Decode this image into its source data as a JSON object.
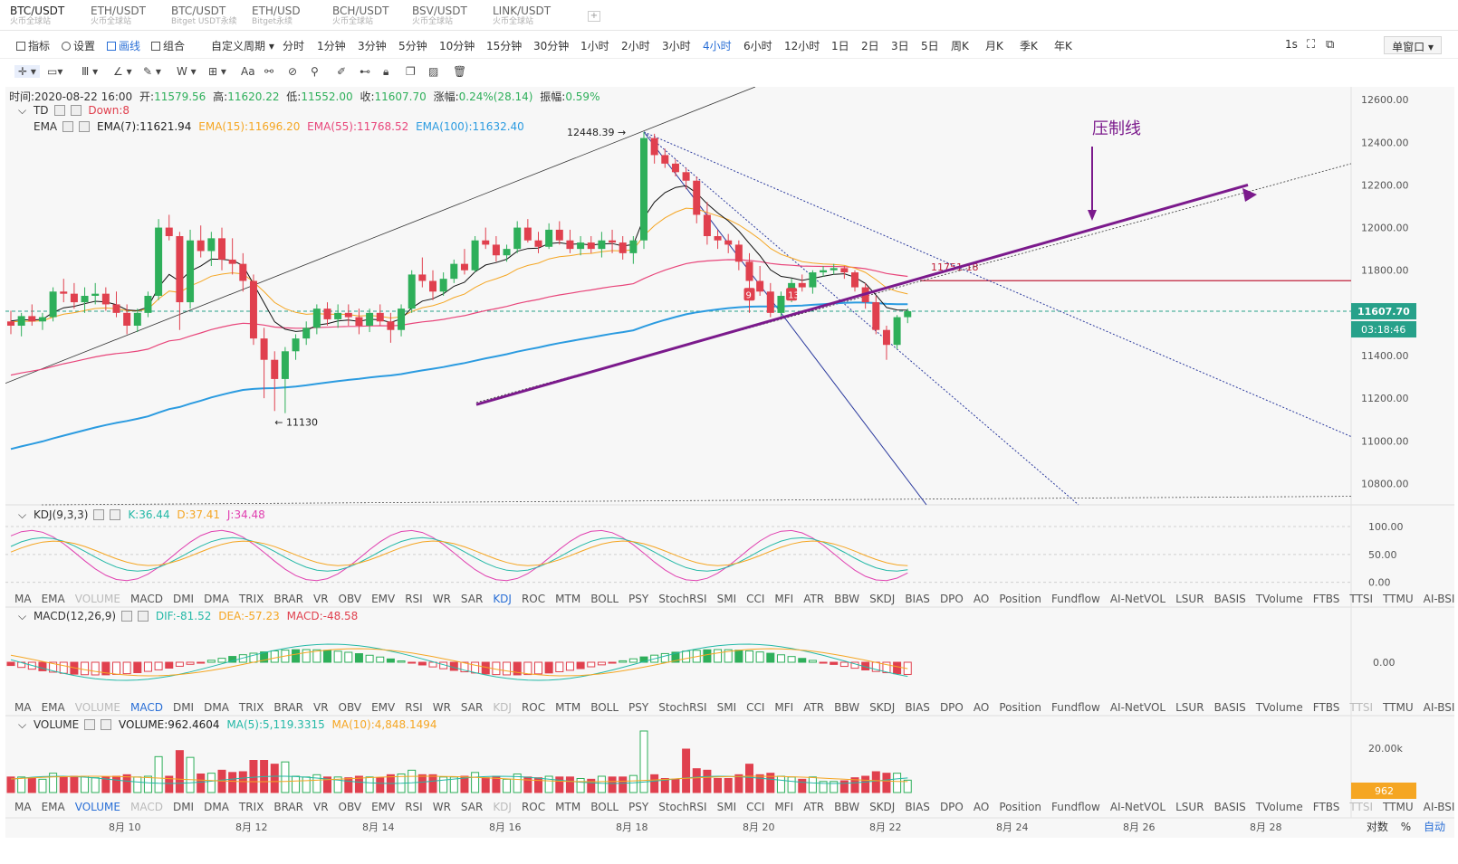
{
  "tabs": [
    {
      "symbol": "BTC/USDT",
      "source": "火币全球站"
    },
    {
      "symbol": "ETH/USDT",
      "source": "火币全球站"
    },
    {
      "symbol": "BTC/USDT",
      "source": "Bitget USDT永续"
    },
    {
      "symbol": "ETH/USD",
      "source": "Bitget永续"
    },
    {
      "symbol": "BCH/USDT",
      "source": "火币全球站"
    },
    {
      "symbol": "BSV/USDT",
      "source": "火币全球站"
    },
    {
      "symbol": "LINK/USDT",
      "source": "火币全球站"
    }
  ],
  "toolbar": {
    "indicator": "指标",
    "settings": "设置",
    "draw": "画线",
    "combo": "组合",
    "custom_period": "自定义周期",
    "periods": [
      "分时",
      "1分钟",
      "3分钟",
      "5分钟",
      "10分钟",
      "15分钟",
      "30分钟",
      "1小时",
      "2小时",
      "3小时",
      "4小时",
      "6小时",
      "12小时",
      "1日",
      "2日",
      "3日",
      "5日",
      "周K",
      "月K",
      "季K",
      "年K"
    ],
    "active_period": "4小时",
    "refresh": "1s",
    "window": "单窗口"
  },
  "ohlc": {
    "time_label": "时间:",
    "time": "2020-08-22 16:00",
    "open_label": "开:",
    "open": "11579.56",
    "high_label": "高:",
    "high": "11620.22",
    "low_label": "低:",
    "low": "11552.00",
    "close_label": "收:",
    "close": "11607.70",
    "change_label": "涨幅:",
    "change": "0.24%(28.14)",
    "amp_label": "振幅:",
    "amp": "0.59%"
  },
  "td": {
    "name": "TD",
    "value": "Down:8"
  },
  "ema": {
    "name": "EMA",
    "ema7": "EMA(7):11621.94",
    "ema15": "EMA(15):11696.20",
    "ema55": "EMA(55):11768.52",
    "ema100": "EMA(100):11632.40"
  },
  "annotations": {
    "high_label": "12448.39",
    "low_label": "11130",
    "price_level": "11751.18",
    "pressure_line": "压制线",
    "td_9": "9",
    "td_13": "13"
  },
  "price_axis": [
    "12600.00",
    "12400.00",
    "12200.00",
    "12000.00",
    "11800.00",
    "11600.00",
    "11400.00",
    "11200.00",
    "11000.00",
    "10800.00"
  ],
  "current_price": "11607.70",
  "countdown": "03:18:46",
  "kdj": {
    "name": "KDJ(9,3,3)",
    "k": "K:36.44",
    "d": "D:37.41",
    "j": "J:34.48",
    "axis": [
      "100.00",
      "50.00",
      "0.00"
    ]
  },
  "macd": {
    "name": "MACD(12,26,9)",
    "dif": "DIF:-81.52",
    "dea": "DEA:-57.23",
    "macd": "MACD:-48.58",
    "axis": [
      "0.00"
    ]
  },
  "volume": {
    "name": "VOLUME",
    "vol": "VOLUME:962.4604",
    "ma5": "MA(5):5,119.3315",
    "ma10": "MA(10):4,848.1494",
    "axis": [
      "20.00k"
    ],
    "current": "962"
  },
  "indicator_list": [
    "MA",
    "EMA",
    "VOLUME",
    "MACD",
    "DMI",
    "DMA",
    "TRIX",
    "BRAR",
    "VR",
    "OBV",
    "EMV",
    "RSI",
    "WR",
    "SAR",
    "KDJ",
    "ROC",
    "MTM",
    "BOLL",
    "PSY",
    "StochRSI",
    "SMI",
    "CCI",
    "MFI",
    "ATR",
    "BBW",
    "SKDJ",
    "BIAS",
    "DPO",
    "AO",
    "Position",
    "Fundflow",
    "AI-NetVOL",
    "LSUR",
    "BASIS",
    "TVolume",
    "FTBS",
    "TTSI",
    "TTMU",
    "AI-BSI"
  ],
  "date_axis": [
    "8月 10",
    "8月 12",
    "8月 14",
    "8月 16",
    "8月 18",
    "8月 20",
    "8月 22",
    "8月 24",
    "8月 26",
    "8月 28"
  ],
  "footer": {
    "log": "对数",
    "percent": "%",
    "auto": "自动"
  },
  "colors": {
    "up": "#2eaf5a",
    "down": "#e0404e",
    "ema7": "#111111",
    "ema15": "#f5a623",
    "ema55": "#e8457a",
    "ema100": "#2b9be0",
    "trend": "#7b1a8c",
    "accent": "#2a6fd6"
  },
  "chart_data": {
    "type": "candlestick",
    "interval": "4小时",
    "candles": [
      [
        11560,
        11610,
        11500,
        11540
      ],
      [
        11540,
        11600,
        11490,
        11585
      ],
      [
        11585,
        11640,
        11540,
        11560
      ],
      [
        11560,
        11600,
        11520,
        11580
      ],
      [
        11580,
        11720,
        11560,
        11700
      ],
      [
        11700,
        11760,
        11650,
        11690
      ],
      [
        11690,
        11740,
        11620,
        11650
      ],
      [
        11650,
        11720,
        11600,
        11680
      ],
      [
        11680,
        11740,
        11640,
        11690
      ],
      [
        11690,
        11720,
        11610,
        11640
      ],
      [
        11640,
        11700,
        11580,
        11600
      ],
      [
        11600,
        11640,
        11500,
        11540
      ],
      [
        11540,
        11620,
        11510,
        11600
      ],
      [
        11600,
        11700,
        11580,
        11680
      ],
      [
        11680,
        12040,
        11660,
        12000
      ],
      [
        12000,
        12060,
        11940,
        11960
      ],
      [
        11960,
        11980,
        11520,
        11650
      ],
      [
        11650,
        11990,
        11620,
        11940
      ],
      [
        11940,
        12010,
        11860,
        11890
      ],
      [
        11890,
        11980,
        11820,
        11950
      ],
      [
        11950,
        12000,
        11800,
        11850
      ],
      [
        11850,
        11950,
        11780,
        11830
      ],
      [
        11830,
        11880,
        11700,
        11750
      ],
      [
        11750,
        11780,
        11450,
        11480
      ],
      [
        11480,
        11530,
        11200,
        11380
      ],
      [
        11380,
        11420,
        11140,
        11290
      ],
      [
        11290,
        11440,
        11130,
        11420
      ],
      [
        11420,
        11500,
        11380,
        11480
      ],
      [
        11480,
        11560,
        11450,
        11530
      ],
      [
        11530,
        11640,
        11500,
        11620
      ],
      [
        11620,
        11650,
        11540,
        11570
      ],
      [
        11570,
        11640,
        11530,
        11600
      ],
      [
        11600,
        11640,
        11540,
        11580
      ],
      [
        11580,
        11620,
        11500,
        11540
      ],
      [
        11540,
        11620,
        11510,
        11600
      ],
      [
        11600,
        11640,
        11540,
        11560
      ],
      [
        11560,
        11600,
        11460,
        11520
      ],
      [
        11520,
        11640,
        11490,
        11620
      ],
      [
        11620,
        11800,
        11600,
        11780
      ],
      [
        11780,
        11860,
        11720,
        11750
      ],
      [
        11750,
        11800,
        11660,
        11700
      ],
      [
        11700,
        11790,
        11680,
        11760
      ],
      [
        11760,
        11850,
        11740,
        11830
      ],
      [
        11830,
        11900,
        11780,
        11800
      ],
      [
        11800,
        11960,
        11790,
        11940
      ],
      [
        11940,
        12000,
        11900,
        11920
      ],
      [
        11920,
        11960,
        11840,
        11870
      ],
      [
        11870,
        11920,
        11840,
        11900
      ],
      [
        11900,
        12030,
        11880,
        12000
      ],
      [
        12000,
        12040,
        11930,
        11940
      ],
      [
        11940,
        11980,
        11880,
        11910
      ],
      [
        11910,
        12020,
        11900,
        11990
      ],
      [
        11990,
        12030,
        11920,
        11940
      ],
      [
        11940,
        11990,
        11880,
        11900
      ],
      [
        11900,
        11960,
        11870,
        11930
      ],
      [
        11930,
        11960,
        11880,
        11900
      ],
      [
        11900,
        11980,
        11860,
        11940
      ],
      [
        11940,
        11990,
        11880,
        11930
      ],
      [
        11930,
        11960,
        11850,
        11880
      ],
      [
        11880,
        11960,
        11830,
        11940
      ],
      [
        11940,
        12448,
        11900,
        12420
      ],
      [
        12420,
        12440,
        12300,
        12340
      ],
      [
        12340,
        12370,
        12280,
        12300
      ],
      [
        12300,
        12320,
        12240,
        12260
      ],
      [
        12260,
        12280,
        12180,
        12220
      ],
      [
        12220,
        12240,
        12020,
        12060
      ],
      [
        12060,
        12120,
        11920,
        11960
      ],
      [
        11960,
        11990,
        11900,
        11940
      ],
      [
        11940,
        11970,
        11880,
        11920
      ],
      [
        11920,
        11940,
        11800,
        11840
      ],
      [
        11840,
        11880,
        11600,
        11750
      ],
      [
        11750,
        11820,
        11680,
        11700
      ],
      [
        11700,
        11740,
        11580,
        11600
      ],
      [
        11600,
        11700,
        11580,
        11680
      ],
      [
        11680,
        11760,
        11650,
        11740
      ],
      [
        11740,
        11780,
        11700,
        11720
      ],
      [
        11720,
        11800,
        11690,
        11790
      ],
      [
        11790,
        11820,
        11770,
        11800
      ],
      [
        11800,
        11830,
        11780,
        11810
      ],
      [
        11810,
        11820,
        11760,
        11790
      ],
      [
        11790,
        11800,
        11700,
        11720
      ],
      [
        11720,
        11740,
        11620,
        11650
      ],
      [
        11650,
        11680,
        11500,
        11520
      ],
      [
        11520,
        11540,
        11380,
        11450
      ],
      [
        11450,
        11590,
        11430,
        11580
      ],
      [
        11580,
        11620,
        11552,
        11608
      ]
    ]
  }
}
